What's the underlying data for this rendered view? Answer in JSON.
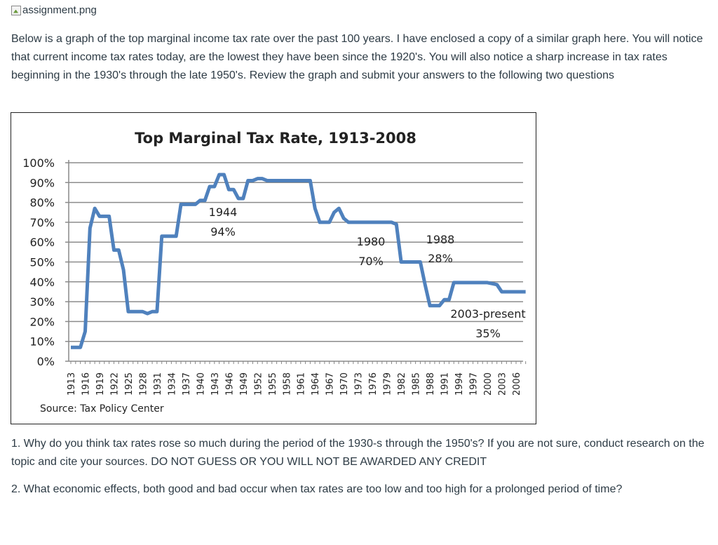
{
  "image_filename": "assignment.png",
  "intro": "Below is a graph of the top marginal income tax rate over the past 100 years. I have enclosed a copy of a similar graph here. You will notice that current income tax rates today, are the lowest they have been since the 1920's. You will also notice a sharp increase in tax rates beginning in the 1930's through the late 1950's. Review the graph and submit your answers to the following two questions",
  "questions": [
    "1. Why do you think tax rates rose so much during the period of the 1930-s through the 1950's? If you are not sure, conduct research on the topic and cite your sources. DO NOT GUESS OR YOU WILL NOT BE AWARDED ANY CREDIT",
    "2. What economic effects, both good and bad occur when tax rates are too low and too high for a prolonged period of time?"
  ],
  "chart_data": {
    "type": "line",
    "title": "Top Marginal Tax Rate, 1913-2008",
    "source": "Source:  Tax Policy Center",
    "ylim": [
      0,
      100
    ],
    "y_ticks": [
      "0%",
      "10%",
      "20%",
      "30%",
      "40%",
      "50%",
      "60%",
      "70%",
      "80%",
      "90%",
      "100%"
    ],
    "x_ticks": [
      "1913",
      "1916",
      "1919",
      "1922",
      "1925",
      "1928",
      "1931",
      "1934",
      "1937",
      "1940",
      "1943",
      "1946",
      "1949",
      "1952",
      "1955",
      "1958",
      "1961",
      "1964",
      "1967",
      "1970",
      "1973",
      "1976",
      "1979",
      "1982",
      "1985",
      "1988",
      "1991",
      "1994",
      "1997",
      "2000",
      "2003",
      "2006"
    ],
    "grid": true,
    "color": "#4f81bd",
    "x": [
      1913,
      1914,
      1915,
      1916,
      1917,
      1918,
      1919,
      1920,
      1921,
      1922,
      1923,
      1924,
      1925,
      1926,
      1927,
      1928,
      1929,
      1930,
      1931,
      1932,
      1933,
      1934,
      1935,
      1936,
      1937,
      1938,
      1939,
      1940,
      1941,
      1942,
      1943,
      1944,
      1945,
      1946,
      1947,
      1948,
      1949,
      1950,
      1951,
      1952,
      1953,
      1954,
      1955,
      1956,
      1957,
      1958,
      1959,
      1960,
      1961,
      1962,
      1963,
      1964,
      1965,
      1966,
      1967,
      1968,
      1969,
      1970,
      1971,
      1972,
      1973,
      1974,
      1975,
      1976,
      1977,
      1978,
      1979,
      1980,
      1981,
      1982,
      1983,
      1984,
      1985,
      1986,
      1987,
      1988,
      1989,
      1990,
      1991,
      1992,
      1993,
      1994,
      1995,
      1996,
      1997,
      1998,
      1999,
      2000,
      2001,
      2002,
      2003,
      2004,
      2005,
      2006,
      2007,
      2008
    ],
    "y": [
      7,
      7,
      7,
      15,
      67,
      77,
      73,
      73,
      73,
      56,
      56,
      46,
      25,
      25,
      25,
      25,
      24,
      25,
      25,
      63,
      63,
      63,
      63,
      79,
      79,
      79,
      79,
      81,
      81,
      88,
      88,
      94,
      94,
      86.5,
      86.5,
      82,
      82,
      91,
      91,
      92,
      92,
      91,
      91,
      91,
      91,
      91,
      91,
      91,
      91,
      91,
      91,
      77,
      70,
      70,
      70,
      75,
      77,
      72,
      70,
      70,
      70,
      70,
      70,
      70,
      70,
      70,
      70,
      70,
      69,
      50,
      50,
      50,
      50,
      50,
      38.5,
      28,
      28,
      28,
      31,
      31,
      39.6,
      39.6,
      39.6,
      39.6,
      39.6,
      39.6,
      39.6,
      39.6,
      39.1,
      38.6,
      35,
      35,
      35,
      35,
      35,
      35
    ],
    "annotations": [
      {
        "year": "1944",
        "value": "94%"
      },
      {
        "year": "1980",
        "value": "70%"
      },
      {
        "year": "1988",
        "value": "28%"
      },
      {
        "year": "2003-present",
        "value": "35%"
      }
    ]
  }
}
